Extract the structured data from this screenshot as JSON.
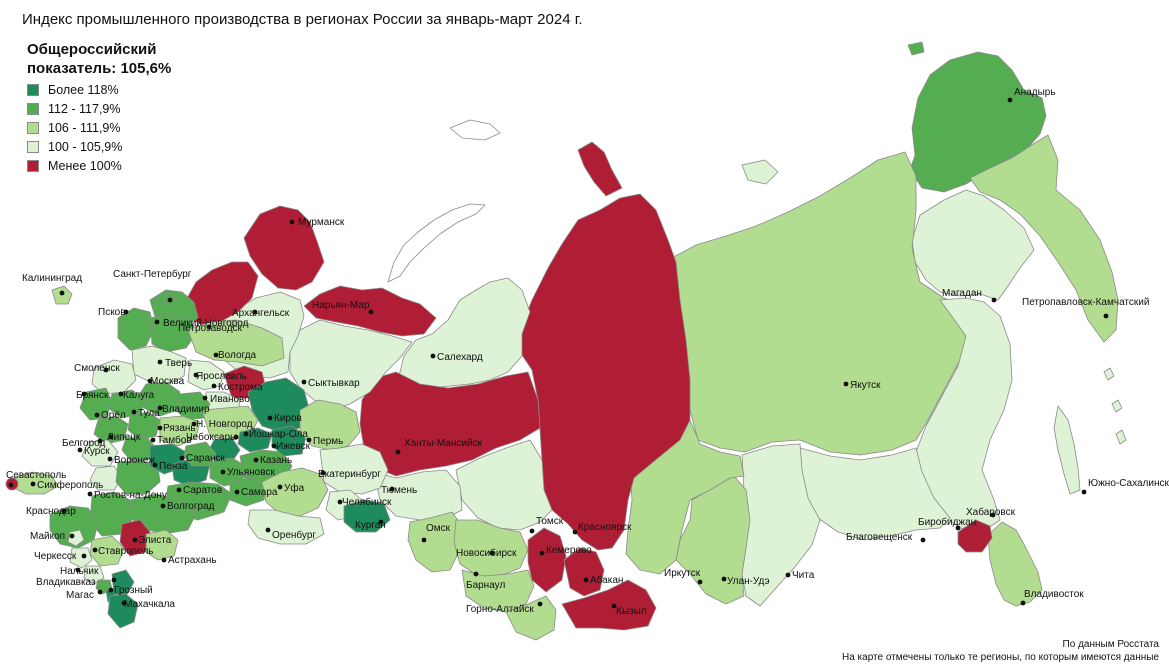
{
  "title": "Индекс промышленного производства в регионах России за январь-март 2024 г.",
  "legend": {
    "heading_line1": "Общероссийский",
    "heading_line2": "показатель: 105,6%",
    "items": [
      {
        "label": "Более 118%",
        "color": "#1e8b5c"
      },
      {
        "label": "112 - 117,9%",
        "color": "#55ad52"
      },
      {
        "label": "106 - 111,9%",
        "color": "#b2dc8f"
      },
      {
        "label": "100 - 105,9%",
        "color": "#def2d6"
      },
      {
        "label": "Менее 100%",
        "color": "#b01e36"
      }
    ]
  },
  "cities": [
    {
      "name": "Мурманск"
    },
    {
      "name": "Петрозаводск"
    },
    {
      "name": "Архангельск"
    },
    {
      "name": "Нарьян-Мар"
    },
    {
      "name": "Санкт-Петербург"
    },
    {
      "name": "Калининград"
    },
    {
      "name": "Псков"
    },
    {
      "name": "Великий Новгород"
    },
    {
      "name": "Вологда"
    },
    {
      "name": "Тверь"
    },
    {
      "name": "Смоленск"
    },
    {
      "name": "Ярославль"
    },
    {
      "name": "Кострома"
    },
    {
      "name": "Иваново"
    },
    {
      "name": "Москва"
    },
    {
      "name": "Брянск"
    },
    {
      "name": "Калуга"
    },
    {
      "name": "Владимир"
    },
    {
      "name": "Тула"
    },
    {
      "name": "Орёл"
    },
    {
      "name": "Рязань"
    },
    {
      "name": "Курск"
    },
    {
      "name": "Липецк"
    },
    {
      "name": "Н. Новгород"
    },
    {
      "name": "Чебоксары"
    },
    {
      "name": "Киров"
    },
    {
      "name": "Йошкар-Ола"
    },
    {
      "name": "Белгород"
    },
    {
      "name": "Тамбов"
    },
    {
      "name": "Воронеж"
    },
    {
      "name": "Казань"
    },
    {
      "name": "Ижевск"
    },
    {
      "name": "Пенза"
    },
    {
      "name": "Саранск"
    },
    {
      "name": "Ульяновск"
    },
    {
      "name": "Саратов"
    },
    {
      "name": "Самара"
    },
    {
      "name": "Ростов-на-Дону"
    },
    {
      "name": "Волгоград"
    },
    {
      "name": "Севастополь"
    },
    {
      "name": "Симферополь"
    },
    {
      "name": "Краснодар"
    },
    {
      "name": "Майкоп"
    },
    {
      "name": "Черкесск"
    },
    {
      "name": "Элиста"
    },
    {
      "name": "Ставрополь"
    },
    {
      "name": "Астрахань"
    },
    {
      "name": "Нальчик"
    },
    {
      "name": "Владикавказ"
    },
    {
      "name": "Магас"
    },
    {
      "name": "Грозный"
    },
    {
      "name": "Махачкала"
    },
    {
      "name": "Сыктывкар"
    },
    {
      "name": "Пермь"
    },
    {
      "name": "Уфа"
    },
    {
      "name": "Оренбург"
    },
    {
      "name": "Екатеринбург"
    },
    {
      "name": "Челябинск"
    },
    {
      "name": "Курган"
    },
    {
      "name": "Тюмень"
    },
    {
      "name": "Салехард"
    },
    {
      "name": "Ханты-Мансийск"
    },
    {
      "name": "Омск"
    },
    {
      "name": "Томск"
    },
    {
      "name": "Новосибирск"
    },
    {
      "name": "Кемерово"
    },
    {
      "name": "Барнаул"
    },
    {
      "name": "Горно-Алтайск"
    },
    {
      "name": "Абакан"
    },
    {
      "name": "Кызыл"
    },
    {
      "name": "Красноярск"
    },
    {
      "name": "Иркутск"
    },
    {
      "name": "Улан-Удэ"
    },
    {
      "name": "Чита"
    },
    {
      "name": "Якутск"
    },
    {
      "name": "Благовещенск"
    },
    {
      "name": "Биробиджан"
    },
    {
      "name": "Хабаровск"
    },
    {
      "name": "Владивосток"
    },
    {
      "name": "Южно-Сахалинск"
    },
    {
      "name": "Магадан"
    },
    {
      "name": "Петропавловск-Камчатский"
    },
    {
      "name": "Анадырь"
    }
  ],
  "footer": {
    "source": "По данным Росстата",
    "note": "На карте отмечены только те регионы, по которым имеются данные"
  }
}
